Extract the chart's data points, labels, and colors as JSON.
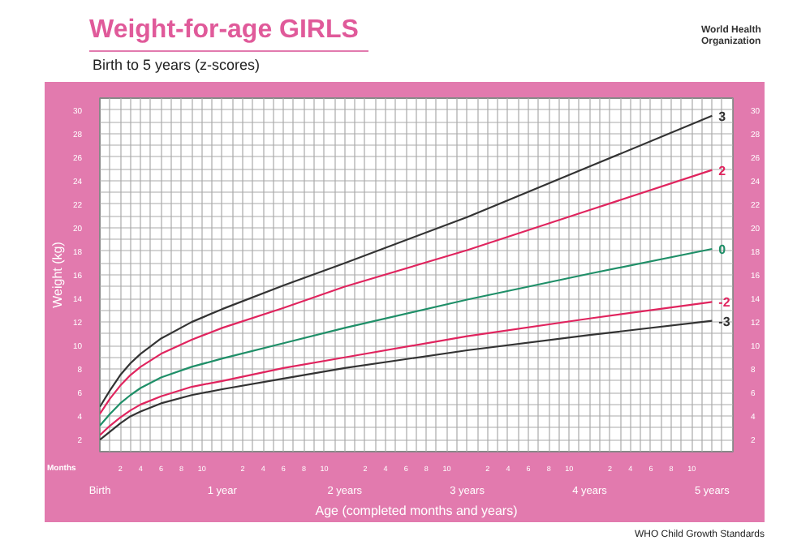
{
  "chart_data": {
    "type": "line",
    "title": "Weight-for-age GIRLS",
    "subtitle": "Birth to 5 years (z-scores)",
    "xlabel": "Age (completed months and years)",
    "ylabel": "Weight (kg)",
    "annotations": [
      "Months",
      "World Health Organization",
      "WHO Child Growth Standards",
      "2",
      "4",
      "6",
      "8",
      "10",
      "2",
      "4",
      "6",
      "8",
      "10",
      "2",
      "4",
      "6",
      "8",
      "10",
      "2",
      "4",
      "6",
      "8",
      "10",
      "2",
      "4",
      "6",
      "8",
      "10"
    ],
    "x": [
      0,
      0.083,
      0.167,
      0.25,
      0.333,
      0.5,
      0.75,
      1,
      1.5,
      2,
      3,
      4,
      5
    ],
    "series": [
      {
        "name": "3",
        "color": "#333333",
        "values": [
          4.8,
          6.2,
          7.5,
          8.5,
          9.3,
          10.6,
          12.0,
          13.1,
          15.1,
          17.0,
          20.9,
          25.2,
          29.5
        ]
      },
      {
        "name": "2",
        "color": "#e0245e",
        "values": [
          4.2,
          5.5,
          6.6,
          7.5,
          8.2,
          9.3,
          10.5,
          11.5,
          13.2,
          15.0,
          18.1,
          21.5,
          24.9
        ]
      },
      {
        "name": "0",
        "color": "#1f8f68",
        "values": [
          3.2,
          4.2,
          5.1,
          5.8,
          6.4,
          7.3,
          8.2,
          8.9,
          10.2,
          11.5,
          13.9,
          16.1,
          18.2
        ]
      },
      {
        "name": "-2",
        "color": "#e0245e",
        "values": [
          2.4,
          3.2,
          3.9,
          4.5,
          5.0,
          5.7,
          6.5,
          7.0,
          8.1,
          9.0,
          10.8,
          12.3,
          13.7
        ]
      },
      {
        "name": "-3",
        "color": "#333333",
        "values": [
          2.0,
          2.7,
          3.4,
          4.0,
          4.4,
          5.1,
          5.8,
          6.3,
          7.2,
          8.1,
          9.6,
          10.9,
          12.1
        ]
      }
    ],
    "xlim": [
      0,
      5.17
    ],
    "xticks": [
      {
        "value": 0,
        "label": "Birth"
      },
      {
        "value": 1,
        "label": "1 year"
      },
      {
        "value": 2,
        "label": "2 years"
      },
      {
        "value": 3,
        "label": "3 years"
      },
      {
        "value": 4,
        "label": "4 years"
      },
      {
        "value": 5,
        "label": "5 years"
      }
    ],
    "ylim": [
      1,
      31
    ],
    "yticks": [
      2,
      {
        "value": 3,
        "label": null
      },
      4,
      {
        "value": 5,
        "label": null
      },
      6,
      {
        "value": 7,
        "label": null
      },
      8,
      {
        "value": 9,
        "label": null
      },
      10,
      {
        "value": 11,
        "label": null
      },
      12,
      {
        "value": 13,
        "label": null
      },
      14,
      {
        "value": 15,
        "label": null
      },
      16,
      {
        "value": 17,
        "label": null
      },
      18,
      {
        "value": 19,
        "label": null
      },
      20,
      {
        "value": 21,
        "label": null
      },
      22,
      {
        "value": 23,
        "label": null
      },
      24,
      {
        "value": 25,
        "label": null
      },
      26,
      {
        "value": 27,
        "label": null
      },
      28,
      {
        "value": 29,
        "label": null
      },
      30
    ],
    "y2lim": [
      1,
      31
    ],
    "y2ticks": [
      2,
      4,
      6,
      8,
      10,
      12,
      14,
      16,
      18,
      20,
      22,
      24,
      26,
      28,
      30
    ],
    "grid": true,
    "legend": false,
    "marker": "none",
    "line_style": "solid"
  }
}
